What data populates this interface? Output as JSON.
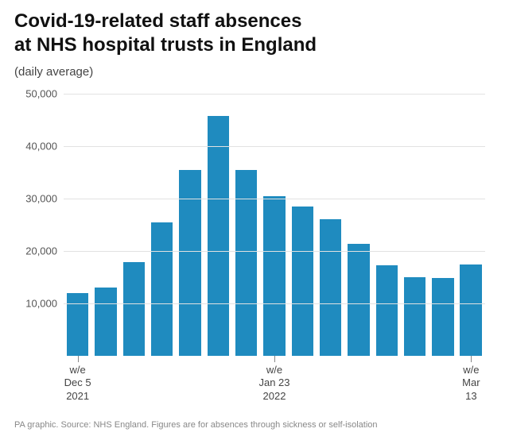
{
  "title": "Covid-19-related staff absences\nat NHS hospital trusts in England",
  "subtitle": "(daily average)",
  "chart": {
    "type": "bar",
    "values": [
      12000,
      13000,
      17900,
      25400,
      35500,
      45800,
      35500,
      30500,
      28500,
      26100,
      21300,
      17300,
      15000,
      14900,
      17500
    ],
    "bar_color": "#1f8bbf",
    "bar_width_ratio": 0.78,
    "ylim": [
      0,
      50000
    ],
    "ytick_step": 10000,
    "ytick_labels": [
      "10,000",
      "20,000",
      "30,000",
      "40,000",
      "50,000"
    ],
    "grid_color": "#e2e2e2",
    "background_color": "#ffffff",
    "ylabel_fontsize": 13,
    "xlabel_fontsize": 13,
    "title_fontsize": 24,
    "x_ticks": [
      {
        "index": 0,
        "label": "w/e\nDec 5\n2021"
      },
      {
        "index": 7,
        "label": "w/e\nJan 23\n2022"
      },
      {
        "index": 14,
        "label": "w/e\nMar 13"
      }
    ]
  },
  "footer": "PA graphic. Source: NHS England. Figures are for absences through sickness or self-isolation"
}
